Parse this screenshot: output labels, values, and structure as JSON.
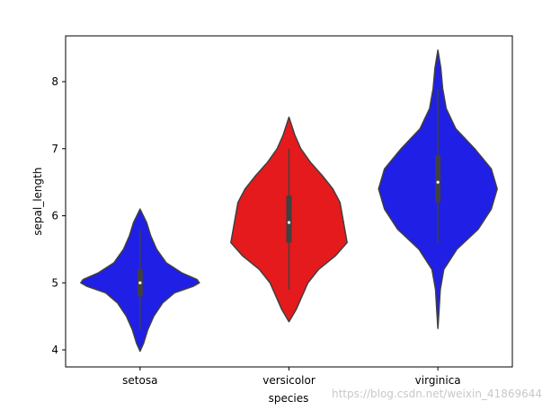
{
  "chart_data": {
    "type": "violin",
    "xlabel": "species",
    "ylabel": "sepal_length",
    "ylim": [
      3.8,
      8.6
    ],
    "yticks": [
      "4",
      "5",
      "6",
      "7",
      "8"
    ],
    "grid": false,
    "categories": [
      "setosa",
      "versicolor",
      "virginica"
    ],
    "colors": [
      "#1f1fe6",
      "#e41a1c",
      "#1f1fe6"
    ],
    "violins": [
      {
        "category": "setosa",
        "color": "#1f1fe6",
        "min": 4.3,
        "q1": 4.8,
        "median": 5.0,
        "q3": 5.2,
        "max": 5.8,
        "density": [
          [
            3.98,
            0
          ],
          [
            4.1,
            0.06
          ],
          [
            4.3,
            0.13
          ],
          [
            4.5,
            0.23
          ],
          [
            4.7,
            0.38
          ],
          [
            4.85,
            0.58
          ],
          [
            4.95,
            0.9
          ],
          [
            5.0,
            1.0
          ],
          [
            5.05,
            0.96
          ],
          [
            5.15,
            0.7
          ],
          [
            5.3,
            0.44
          ],
          [
            5.5,
            0.28
          ],
          [
            5.7,
            0.18
          ],
          [
            5.9,
            0.11
          ],
          [
            6.1,
            0
          ]
        ]
      },
      {
        "category": "versicolor",
        "color": "#e41a1c",
        "min": 4.9,
        "q1": 5.6,
        "median": 5.9,
        "q3": 6.3,
        "max": 7.0,
        "density": [
          [
            4.42,
            0
          ],
          [
            4.6,
            0.12
          ],
          [
            4.8,
            0.22
          ],
          [
            5.0,
            0.32
          ],
          [
            5.2,
            0.5
          ],
          [
            5.4,
            0.78
          ],
          [
            5.6,
            0.98
          ],
          [
            5.8,
            0.94
          ],
          [
            6.0,
            0.9
          ],
          [
            6.2,
            0.86
          ],
          [
            6.4,
            0.74
          ],
          [
            6.6,
            0.56
          ],
          [
            6.8,
            0.36
          ],
          [
            7.0,
            0.2
          ],
          [
            7.2,
            0.1
          ],
          [
            7.47,
            0
          ]
        ]
      },
      {
        "category": "virginica",
        "color": "#1f1fe6",
        "min": 5.6,
        "q1": 6.2,
        "median": 6.5,
        "q3": 6.9,
        "max": 7.9,
        "density": [
          [
            4.32,
            0
          ],
          [
            4.6,
            0.02
          ],
          [
            4.9,
            0.04
          ],
          [
            5.2,
            0.1
          ],
          [
            5.5,
            0.32
          ],
          [
            5.8,
            0.68
          ],
          [
            6.1,
            0.9
          ],
          [
            6.4,
            1.0
          ],
          [
            6.7,
            0.9
          ],
          [
            7.0,
            0.62
          ],
          [
            7.3,
            0.3
          ],
          [
            7.6,
            0.14
          ],
          [
            7.9,
            0.08
          ],
          [
            8.2,
            0.05
          ],
          [
            8.47,
            0
          ]
        ]
      }
    ]
  },
  "watermark": "https://blog.csdn.net/weixin_41869644"
}
